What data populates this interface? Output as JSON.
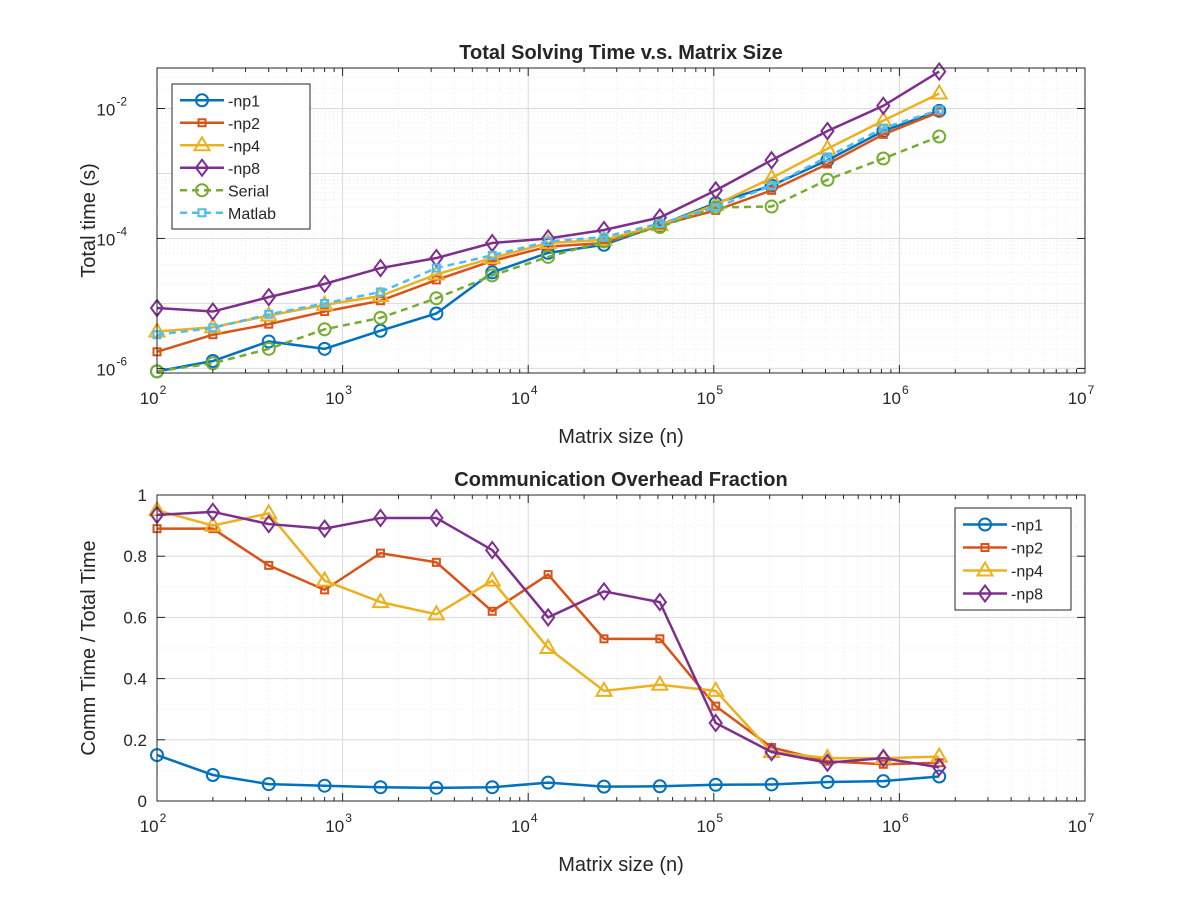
{
  "colors": {
    "np1": "#0072BD",
    "np2": "#D95319",
    "np4": "#EDB120",
    "np8": "#7E2F8E",
    "serial": "#77AC30",
    "matlab": "#4DBEEE",
    "axis": "#262626",
    "grid": "#dcdcdc"
  },
  "chart_data": [
    {
      "type": "line",
      "title": "Total Solving Time v.s. Matrix Size",
      "xlabel": "Matrix size (n)",
      "ylabel": "Total time (s)",
      "xscale": "log",
      "yscale": "log",
      "xlim": [
        100,
        10000000
      ],
      "ylim": [
        8.5e-07,
        0.042
      ],
      "xticks": [
        {
          "base": "10",
          "exp": "2"
        },
        {
          "base": "10",
          "exp": "3"
        },
        {
          "base": "10",
          "exp": "4"
        },
        {
          "base": "10",
          "exp": "5"
        },
        {
          "base": "10",
          "exp": "6"
        },
        {
          "base": "10",
          "exp": "7"
        }
      ],
      "yticks": [
        {
          "base": "10",
          "exp": "-6"
        },
        {
          "base": "10",
          "exp": "-4"
        },
        {
          "base": "10",
          "exp": "-2"
        }
      ],
      "grid": true,
      "legend": "top-left",
      "x": [
        100,
        200,
        400,
        800,
        1600,
        3200,
        6400,
        12800,
        25600,
        51200,
        102400,
        204800,
        409600,
        819200,
        1638400
      ],
      "series": [
        {
          "name": "-np1",
          "key": "np1",
          "marker": "circle",
          "dashed": false,
          "values": [
            9e-07,
            1.3e-06,
            2.6e-06,
            2e-06,
            3.8e-06,
            7e-06,
            3e-05,
            6e-05,
            8e-05,
            0.00016,
            0.00035,
            0.00065,
            0.0016,
            0.0045,
            0.0092
          ]
        },
        {
          "name": "-np2",
          "key": "np2",
          "marker": "square",
          "dashed": false,
          "values": [
            1.8e-06,
            3.3e-06,
            4.8e-06,
            7.5e-06,
            1.1e-05,
            2.3e-05,
            4.5e-05,
            7.5e-05,
            8.5e-05,
            0.00016,
            0.00027,
            0.00055,
            0.0014,
            0.004,
            0.0088
          ]
        },
        {
          "name": "-np4",
          "key": "np4",
          "marker": "triangle",
          "dashed": false,
          "values": [
            3.7e-06,
            4.3e-06,
            6.5e-06,
            9.5e-06,
            1.3e-05,
            2.8e-05,
            5e-05,
            8.5e-05,
            9.5e-05,
            0.00016,
            0.00033,
            0.00085,
            0.0024,
            0.0065,
            0.017
          ]
        },
        {
          "name": "-np8",
          "key": "np8",
          "marker": "diamond",
          "dashed": false,
          "values": [
            8.5e-06,
            7.5e-06,
            1.25e-05,
            2e-05,
            3.5e-05,
            5e-05,
            8.5e-05,
            0.0001,
            0.000135,
            0.00021,
            0.00055,
            0.0016,
            0.0045,
            0.011,
            0.037
          ]
        },
        {
          "name": "Serial",
          "key": "serial",
          "marker": "circle",
          "dashed": true,
          "values": [
            9e-07,
            1.2e-06,
            2e-06,
            4e-06,
            6e-06,
            1.2e-05,
            2.7e-05,
            5.2e-05,
            9e-05,
            0.00015,
            0.0003,
            0.00031,
            0.0008,
            0.0017,
            0.0037
          ]
        },
        {
          "name": "Matlab",
          "key": "matlab",
          "marker": "square",
          "dashed": true,
          "values": [
            3.3e-06,
            4.2e-06,
            6.8e-06,
            1e-05,
            1.5e-05,
            3.5e-05,
            5.5e-05,
            9e-05,
            0.000105,
            0.00017,
            0.0003,
            0.00065,
            0.0018,
            0.005,
            0.0095
          ]
        }
      ]
    },
    {
      "type": "line",
      "title": "Communication Overhead Fraction",
      "xlabel": "Matrix size (n)",
      "ylabel": "Comm Time / Total Time",
      "xscale": "log",
      "yscale": "linear",
      "xlim": [
        100,
        10000000
      ],
      "ylim": [
        0,
        1
      ],
      "xticks": [
        {
          "base": "10",
          "exp": "2"
        },
        {
          "base": "10",
          "exp": "3"
        },
        {
          "base": "10",
          "exp": "4"
        },
        {
          "base": "10",
          "exp": "5"
        },
        {
          "base": "10",
          "exp": "6"
        },
        {
          "base": "10",
          "exp": "7"
        }
      ],
      "yticks": [
        "0",
        "0.2",
        "0.4",
        "0.6",
        "0.8",
        "1"
      ],
      "grid": true,
      "legend": "top-right",
      "x": [
        100,
        200,
        400,
        800,
        1600,
        3200,
        6400,
        12800,
        25600,
        51200,
        102400,
        204800,
        409600,
        819200,
        1638400
      ],
      "series": [
        {
          "name": "-np1",
          "key": "np1",
          "marker": "circle",
          "dashed": false,
          "values": [
            0.15,
            0.085,
            0.055,
            0.05,
            0.045,
            0.043,
            0.045,
            0.06,
            0.047,
            0.048,
            0.053,
            0.054,
            0.062,
            0.065,
            0.08
          ]
        },
        {
          "name": "-np2",
          "key": "np2",
          "marker": "square",
          "dashed": false,
          "values": [
            0.89,
            0.89,
            0.77,
            0.69,
            0.81,
            0.78,
            0.62,
            0.74,
            0.53,
            0.53,
            0.31,
            0.175,
            0.13,
            0.12,
            0.125
          ]
        },
        {
          "name": "-np4",
          "key": "np4",
          "marker": "triangle",
          "dashed": false,
          "values": [
            0.95,
            0.9,
            0.94,
            0.72,
            0.65,
            0.61,
            0.72,
            0.5,
            0.36,
            0.38,
            0.36,
            0.16,
            0.14,
            0.14,
            0.145
          ]
        },
        {
          "name": "-np8",
          "key": "np8",
          "marker": "diamond",
          "dashed": false,
          "values": [
            0.935,
            0.945,
            0.905,
            0.89,
            0.925,
            0.925,
            0.82,
            0.6,
            0.685,
            0.65,
            0.255,
            0.16,
            0.125,
            0.14,
            0.11
          ]
        }
      ]
    }
  ]
}
